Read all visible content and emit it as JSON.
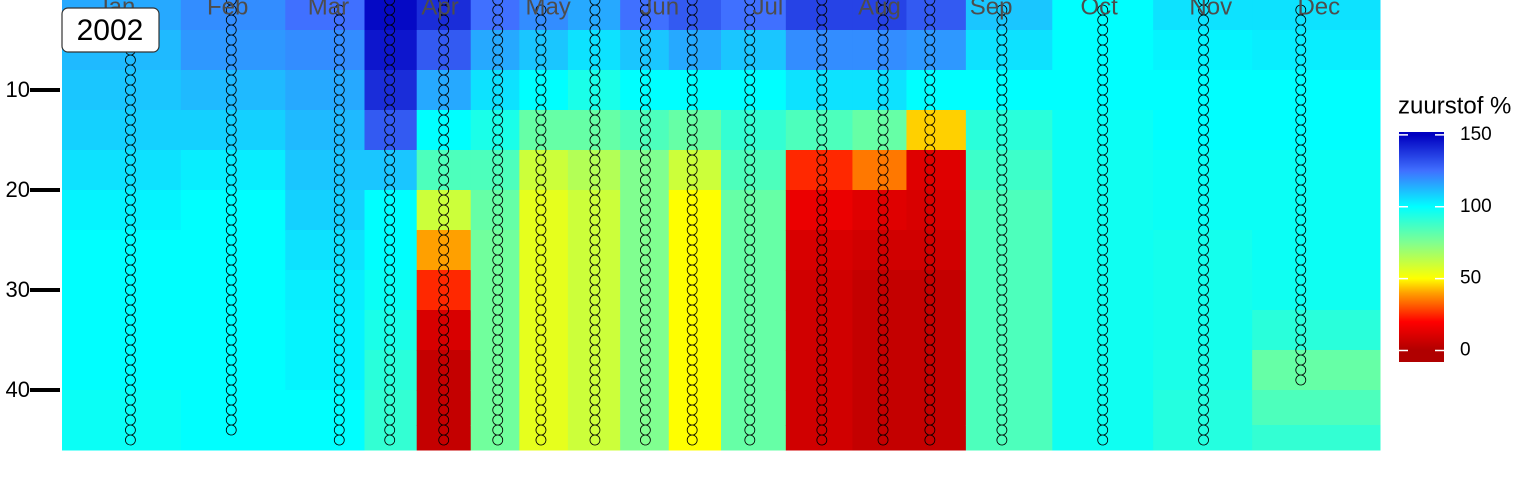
{
  "chart_data": {
    "type": "heatmap",
    "panel_label": "2002",
    "colorbar_title": "zuurstof %",
    "xlim": [
      0,
      366
    ],
    "xticks": [
      {
        "value": 15,
        "label": "Jan"
      },
      {
        "value": 46,
        "label": "Feb"
      },
      {
        "value": 74,
        "label": "Mar"
      },
      {
        "value": 105,
        "label": "Apr"
      },
      {
        "value": 135,
        "label": "May"
      },
      {
        "value": 166,
        "label": "Jun"
      },
      {
        "value": 196,
        "label": "Jul"
      },
      {
        "value": 227,
        "label": "Aug"
      },
      {
        "value": 258,
        "label": "Sep"
      },
      {
        "value": 288,
        "label": "Oct"
      },
      {
        "value": 319,
        "label": "Nov"
      },
      {
        "value": 349,
        "label": "Dec"
      }
    ],
    "ylim": [
      1,
      46
    ],
    "yticks": [
      10,
      20,
      30,
      40
    ],
    "y_reversed": true,
    "x": [
      19,
      47,
      77,
      91,
      106,
      121,
      133,
      148,
      162,
      175,
      191,
      211,
      228,
      241,
      261,
      289,
      317,
      344
    ],
    "depths": [
      2,
      6,
      10,
      14,
      18,
      22,
      26,
      30,
      34,
      38,
      42,
      45
    ],
    "values": [
      [
        115,
        112,
        110,
        108,
        105,
        102,
        100,
        100,
        100,
        100,
        98,
        98
      ],
      [
        120,
        118,
        112,
        108,
        103,
        100,
        100,
        100,
        100,
        100,
        100,
        100
      ],
      [
        125,
        120,
        115,
        112,
        110,
        108,
        105,
        103,
        102,
        102,
        100,
        100
      ],
      [
        148,
        145,
        140,
        130,
        110,
        100,
        100,
        98,
        95,
        92,
        90,
        90
      ],
      [
        140,
        130,
        115,
        100,
        85,
        60,
        40,
        25,
        10,
        5,
        5,
        5
      ],
      [
        125,
        115,
        105,
        95,
        85,
        80,
        78,
        78,
        78,
        78,
        78,
        78
      ],
      [
        120,
        110,
        100,
        80,
        60,
        55,
        55,
        55,
        55,
        55,
        55,
        55
      ],
      [
        115,
        105,
        95,
        80,
        65,
        60,
        60,
        60,
        60,
        60,
        60,
        60
      ],
      [
        125,
        110,
        100,
        85,
        75,
        75,
        75,
        75,
        75,
        75,
        75,
        75
      ],
      [
        130,
        115,
        100,
        80,
        60,
        50,
        50,
        50,
        50,
        50,
        50,
        50
      ],
      [
        125,
        110,
        100,
        90,
        85,
        80,
        80,
        80,
        80,
        80,
        80,
        80
      ],
      [
        135,
        120,
        105,
        85,
        25,
        15,
        10,
        8,
        8,
        8,
        8,
        8
      ],
      [
        135,
        120,
        105,
        80,
        35,
        12,
        8,
        5,
        5,
        5,
        5,
        5
      ],
      [
        130,
        118,
        100,
        45,
        12,
        10,
        8,
        5,
        5,
        5,
        5,
        5
      ],
      [
        110,
        105,
        100,
        92,
        88,
        85,
        85,
        85,
        85,
        85,
        85,
        85
      ],
      [
        100,
        100,
        100,
        98,
        97,
        97,
        97,
        97,
        97,
        97,
        97,
        97
      ],
      [
        105,
        102,
        100,
        100,
        98,
        98,
        96,
        96,
        96,
        95,
        93,
        93
      ],
      [
        105,
        103,
        100,
        100,
        98,
        98,
        98,
        97,
        92,
        80,
        85,
        90
      ]
    ],
    "profiles": [
      {
        "x": 19,
        "depth_range": [
          5,
          45
        ]
      },
      {
        "x": 47,
        "depth_range": [
          1,
          44
        ]
      },
      {
        "x": 77,
        "depth_range": [
          2,
          45
        ]
      },
      {
        "x": 91,
        "depth_range": [
          1,
          45
        ]
      },
      {
        "x": 106,
        "depth_range": [
          1,
          45
        ]
      },
      {
        "x": 121,
        "depth_range": [
          1,
          45
        ]
      },
      {
        "x": 133,
        "depth_range": [
          2,
          45
        ]
      },
      {
        "x": 148,
        "depth_range": [
          1,
          45
        ]
      },
      {
        "x": 162,
        "depth_range": [
          1,
          45
        ]
      },
      {
        "x": 175,
        "depth_range": [
          1,
          45
        ]
      },
      {
        "x": 191,
        "depth_range": [
          1,
          45
        ]
      },
      {
        "x": 211,
        "depth_range": [
          1,
          45
        ]
      },
      {
        "x": 228,
        "depth_range": [
          1,
          45
        ]
      },
      {
        "x": 241,
        "depth_range": [
          1,
          45
        ]
      },
      {
        "x": 261,
        "depth_range": [
          2,
          45
        ]
      },
      {
        "x": 289,
        "depth_range": [
          2,
          45
        ]
      },
      {
        "x": 317,
        "depth_range": [
          1,
          45
        ]
      },
      {
        "x": 344,
        "depth_range": [
          2,
          39
        ]
      }
    ],
    "clim": [
      -8,
      152
    ],
    "cticks": [
      0,
      50,
      100,
      150
    ],
    "colormap": [
      {
        "value": 0,
        "color": "#b00000"
      },
      {
        "value": 20,
        "color": "#ff0000"
      },
      {
        "value": 40,
        "color": "#ffa000"
      },
      {
        "value": 50,
        "color": "#ffff00"
      },
      {
        "value": 75,
        "color": "#80ff90"
      },
      {
        "value": 100,
        "color": "#00ffff"
      },
      {
        "value": 125,
        "color": "#4070ff"
      },
      {
        "value": 150,
        "color": "#0000c0"
      }
    ]
  }
}
